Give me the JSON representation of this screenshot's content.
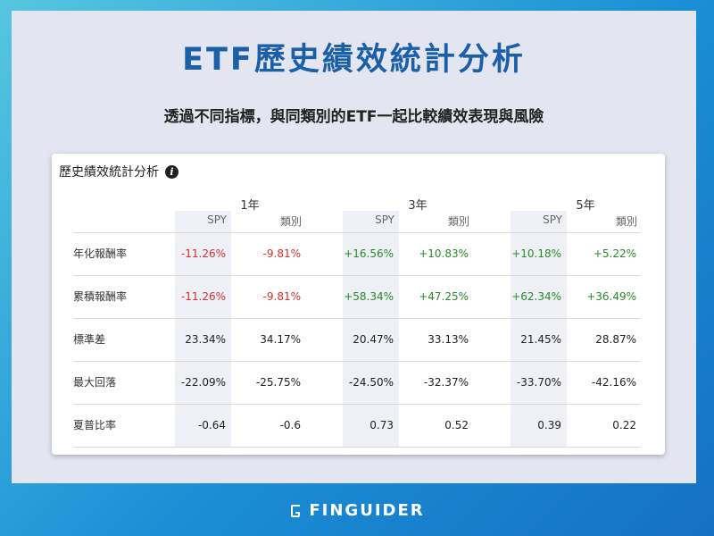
{
  "main_title": "ETF歷史績效統計分析",
  "subtitle": "透過不同指標，與同類別的ETF一起比較績效表現與風險",
  "card": {
    "title": "歷史績效統計分析",
    "info_icon": "i"
  },
  "periods": [
    "1年",
    "3年",
    "5年"
  ],
  "subheads": [
    "SPY",
    "類別"
  ],
  "rows": [
    {
      "label": "年化報酬率",
      "values": [
        "-11.26%",
        "-9.81%",
        "+16.56%",
        "+10.83%",
        "+10.18%",
        "+5.22%"
      ]
    },
    {
      "label": "累積報酬率",
      "values": [
        "-11.26%",
        "-9.81%",
        "+58.34%",
        "+47.25%",
        "+62.34%",
        "+36.49%"
      ]
    },
    {
      "label": "標準差",
      "values": [
        "23.34%",
        "34.17%",
        "20.47%",
        "33.13%",
        "21.45%",
        "28.87%"
      ]
    },
    {
      "label": "最大回落",
      "values": [
        "-22.09%",
        "-25.75%",
        "-24.50%",
        "-32.37%",
        "-33.70%",
        "-42.16%"
      ]
    },
    {
      "label": "夏普比率",
      "values": [
        "-0.64",
        "-0.6",
        "0.73",
        "0.52",
        "0.39",
        "0.22"
      ]
    }
  ],
  "brand": "FINGUIDER",
  "colors": {
    "negative": "#d03030",
    "positive": "#2a8a2a",
    "title": "#1a5fa8"
  }
}
